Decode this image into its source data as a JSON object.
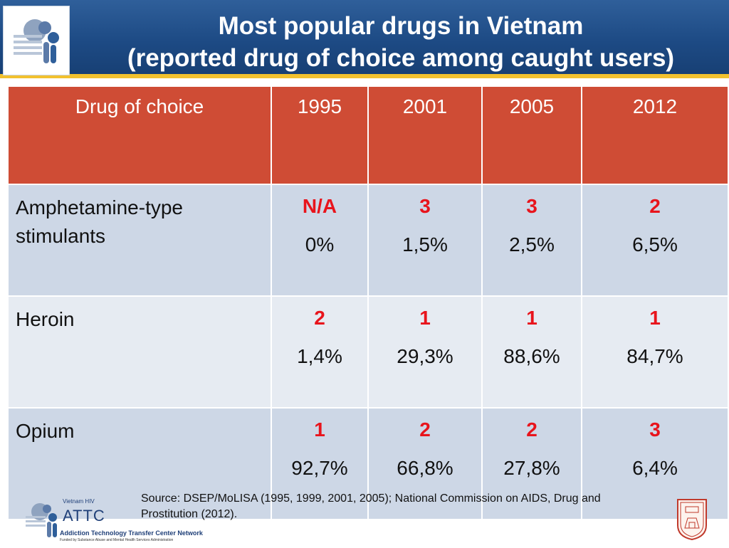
{
  "header": {
    "title_line1": "Most popular drugs in Vietnam",
    "title_line2": "(reported drug of choice among caught users)"
  },
  "table": {
    "columns": [
      "Drug of choice",
      "1995",
      "2001",
      "2005",
      "2012"
    ],
    "rows": [
      {
        "drug_line1": "Amphetamine-type",
        "drug_line2": "stimulants",
        "cells": [
          {
            "rank": "N/A",
            "pct": "0%"
          },
          {
            "rank": "3",
            "pct": "1,5%"
          },
          {
            "rank": "3",
            "pct": "2,5%"
          },
          {
            "rank": "2",
            "pct": "6,5%"
          }
        ]
      },
      {
        "drug_line1": "Heroin",
        "drug_line2": "",
        "cells": [
          {
            "rank": "2",
            "pct": "1,4%"
          },
          {
            "rank": "1",
            "pct": "29,3%"
          },
          {
            "rank": "1",
            "pct": "88,6%"
          },
          {
            "rank": "1",
            "pct": "84,7%"
          }
        ]
      },
      {
        "drug_line1": "Opium",
        "drug_line2": "",
        "cells": [
          {
            "rank": "1",
            "pct": "92,7%"
          },
          {
            "rank": "2",
            "pct": "66,8%"
          },
          {
            "rank": "2",
            "pct": "27,8%"
          },
          {
            "rank": "3",
            "pct": "6,4%"
          }
        ]
      }
    ]
  },
  "footer": {
    "source_text": "Source: DSEP/MoLISA (1995, 1999, 2001, 2005);  National Commission on AIDS, Drug and Prostitution (2012).",
    "logo_top_text": "Vietnam HIV",
    "logo_name": "ATTC",
    "logo_network": "Addiction Technology Transfer Center Network",
    "logo_funded": "Funded by Substance Abuse and Mental Health Services Administration"
  },
  "colors": {
    "header_blue": "#1d4a84",
    "header_accent": "#f2c12e",
    "table_header": "#cf4c35",
    "row_dark": "#cdd7e6",
    "row_light": "#e6ebf2",
    "rank_red": "#e8141c"
  },
  "icons": {
    "header_logo": "people-logo-icon",
    "footer_logo": "attc-logo-icon",
    "seal": "university-seal-icon"
  }
}
